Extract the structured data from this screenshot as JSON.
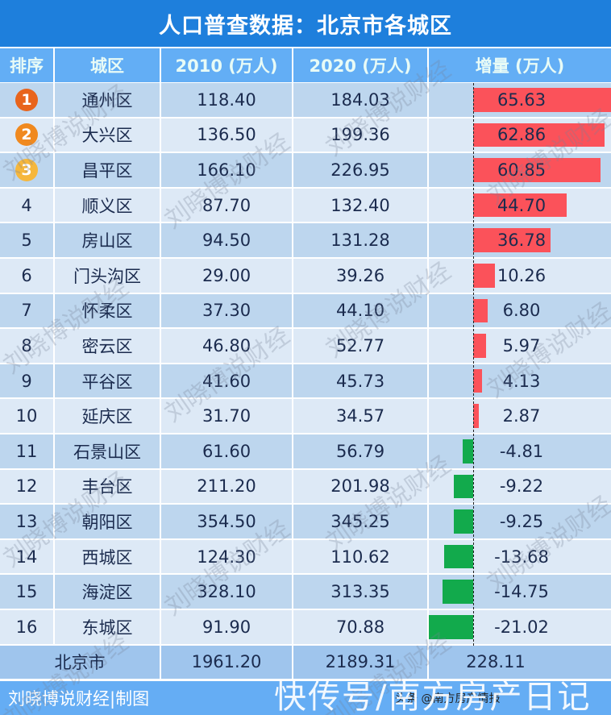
{
  "title": "人口普查数据：北京市各城区",
  "columns": [
    "排序",
    "城区",
    "2010 (万人)",
    "2020 (万人)",
    "增量 (万人)"
  ],
  "colors": {
    "title_bg": "#1e7fdc",
    "header_bg": "#63aef5",
    "row_odd": "#bdd6ee",
    "row_even": "#dde9f6",
    "positive_bar": "#fb525a",
    "negative_bar": "#12aa4c",
    "rank1": "#e8641c",
    "rank2": "#f0891f",
    "rank3": "#f6b73c"
  },
  "rows": [
    {
      "rank": "1",
      "district": "通州区",
      "y2010": "118.40",
      "y2020": "184.03",
      "delta": "65.63"
    },
    {
      "rank": "2",
      "district": "大兴区",
      "y2010": "136.50",
      "y2020": "199.36",
      "delta": "62.86"
    },
    {
      "rank": "3",
      "district": "昌平区",
      "y2010": "166.10",
      "y2020": "226.95",
      "delta": "60.85"
    },
    {
      "rank": "4",
      "district": "顺义区",
      "y2010": "87.70",
      "y2020": "132.40",
      "delta": "44.70"
    },
    {
      "rank": "5",
      "district": "房山区",
      "y2010": "94.50",
      "y2020": "131.28",
      "delta": "36.78"
    },
    {
      "rank": "6",
      "district": "门头沟区",
      "y2010": "29.00",
      "y2020": "39.26",
      "delta": "10.26"
    },
    {
      "rank": "7",
      "district": "怀柔区",
      "y2010": "37.30",
      "y2020": "44.10",
      "delta": "6.80"
    },
    {
      "rank": "8",
      "district": "密云区",
      "y2010": "46.80",
      "y2020": "52.77",
      "delta": "5.97"
    },
    {
      "rank": "9",
      "district": "平谷区",
      "y2010": "41.60",
      "y2020": "45.73",
      "delta": "4.13"
    },
    {
      "rank": "10",
      "district": "延庆区",
      "y2010": "31.70",
      "y2020": "34.57",
      "delta": "2.87"
    },
    {
      "rank": "11",
      "district": "石景山区",
      "y2010": "61.60",
      "y2020": "56.79",
      "delta": "-4.81"
    },
    {
      "rank": "12",
      "district": "丰台区",
      "y2010": "211.20",
      "y2020": "201.98",
      "delta": "-9.22"
    },
    {
      "rank": "13",
      "district": "朝阳区",
      "y2010": "354.50",
      "y2020": "345.25",
      "delta": "-9.25"
    },
    {
      "rank": "14",
      "district": "西城区",
      "y2010": "124.30",
      "y2020": "110.62",
      "delta": "-13.68"
    },
    {
      "rank": "15",
      "district": "海淀区",
      "y2010": "328.10",
      "y2020": "313.35",
      "delta": "-14.75"
    },
    {
      "rank": "16",
      "district": "东城区",
      "y2010": "91.90",
      "y2020": "70.88",
      "delta": "-21.02"
    }
  ],
  "total": {
    "label": "北京市",
    "y2010": "1961.20",
    "y2020": "2189.31",
    "delta": "228.11"
  },
  "footer": {
    "credit": "刘晓博说财经|制图",
    "source": "头条 @南方房产情报",
    "overlay": "快传号/南方房产日记"
  },
  "watermark": "刘晓博说财经",
  "chart_data": {
    "type": "table",
    "title": "人口普查数据：北京市各城区",
    "columns": [
      "排序",
      "城区",
      "2010 (万人)",
      "2020 (万人)",
      "增量 (万人)"
    ],
    "categories": [
      "通州区",
      "大兴区",
      "昌平区",
      "顺义区",
      "房山区",
      "门头沟区",
      "怀柔区",
      "密云区",
      "平谷区",
      "延庆区",
      "石景山区",
      "丰台区",
      "朝阳区",
      "西城区",
      "海淀区",
      "东城区"
    ],
    "series": [
      {
        "name": "2010 (万人)",
        "values": [
          118.4,
          136.5,
          166.1,
          87.7,
          94.5,
          29.0,
          37.3,
          46.8,
          41.6,
          31.7,
          61.6,
          211.2,
          354.5,
          124.3,
          328.1,
          91.9
        ]
      },
      {
        "name": "2020 (万人)",
        "values": [
          184.03,
          199.36,
          226.95,
          132.4,
          131.28,
          39.26,
          44.1,
          52.77,
          45.73,
          34.57,
          56.79,
          201.98,
          345.25,
          110.62,
          313.35,
          70.88
        ]
      },
      {
        "name": "增量 (万人)",
        "values": [
          65.63,
          62.86,
          60.85,
          44.7,
          36.78,
          10.26,
          6.8,
          5.97,
          4.13,
          2.87,
          -4.81,
          -9.22,
          -9.25,
          -13.68,
          -14.75,
          -21.02
        ]
      }
    ],
    "total": {
      "label": "北京市",
      "y2010": 1961.2,
      "y2020": 2189.31,
      "delta": 228.11
    },
    "notes": "增量 column rendered as in-cell bars: red for positive, green for negative"
  }
}
